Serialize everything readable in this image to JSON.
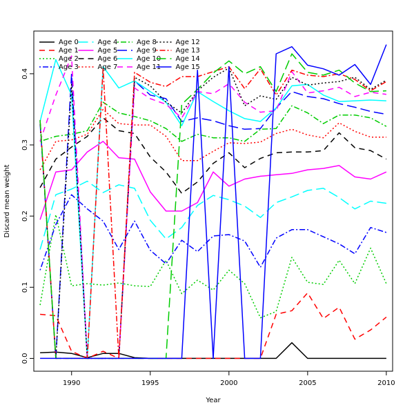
{
  "chart_data": {
    "type": "line",
    "xlabel": "Year",
    "ylabel": "Discard mean weight",
    "xlim": [
      1987.6,
      2010.4
    ],
    "ylim": [
      -0.018,
      0.46
    ],
    "x_ticks": [
      1990,
      1995,
      2000,
      2005,
      2010
    ],
    "y_ticks": [
      0.0,
      0.1,
      0.2,
      0.3,
      0.4
    ],
    "legend_position": "top-left",
    "grid": false,
    "x": [
      1988,
      1989,
      1990,
      1991,
      1992,
      1993,
      1994,
      1995,
      1996,
      1997,
      1998,
      1999,
      2000,
      2001,
      2002,
      2003,
      2004,
      2005,
      2006,
      2007,
      2008,
      2009,
      2010
    ],
    "series": [
      {
        "name": "Age 0",
        "color": "#000000",
        "dash": "solid",
        "values": [
          0.008,
          0.009,
          0.007,
          0.001,
          0.007,
          0.007,
          0.001,
          0.0,
          0.0,
          0.0,
          0.0,
          0.0,
          0.0,
          0.0,
          0.0,
          0.0,
          0.022,
          0.0,
          0.0,
          0.0,
          0.0,
          0.0,
          0.0
        ]
      },
      {
        "name": "Age 1",
        "color": "#ff0000",
        "dash": "dashed",
        "values": [
          0.062,
          0.06,
          0.01,
          0.0,
          0.01,
          0.0,
          0.0,
          0.0,
          0.0,
          0.0,
          0.0,
          0.0,
          0.0,
          0.0,
          0.0,
          0.062,
          0.067,
          0.092,
          0.056,
          0.072,
          0.027,
          0.04,
          0.058
        ]
      },
      {
        "name": "Age 2",
        "color": "#00cc00",
        "dash": "dotted",
        "values": [
          0.075,
          0.202,
          0.102,
          0.105,
          0.103,
          0.106,
          0.102,
          0.101,
          0.138,
          0.091,
          0.11,
          0.096,
          0.124,
          0.105,
          0.057,
          0.066,
          0.142,
          0.107,
          0.104,
          0.138,
          0.105,
          0.155,
          0.105
        ]
      },
      {
        "name": "Age 3",
        "color": "#0000ff",
        "dash": "dashdot",
        "values": [
          0.124,
          0.188,
          0.23,
          0.21,
          0.193,
          0.153,
          0.193,
          0.152,
          0.133,
          0.166,
          0.15,
          0.172,
          0.174,
          0.165,
          0.128,
          0.169,
          0.181,
          0.181,
          0.171,
          0.161,
          0.147,
          0.184,
          0.177
        ]
      },
      {
        "name": "Age 4",
        "color": "#00ffff",
        "dash": "longdash",
        "values": [
          0.153,
          0.23,
          0.238,
          0.249,
          0.233,
          0.244,
          0.239,
          0.194,
          0.168,
          0.184,
          0.215,
          0.229,
          0.223,
          0.214,
          0.198,
          0.219,
          0.227,
          0.236,
          0.239,
          0.226,
          0.21,
          0.221,
          0.218
        ]
      },
      {
        "name": "Age 5",
        "color": "#ff00ff",
        "dash": "solid",
        "values": [
          0.195,
          0.262,
          0.265,
          0.29,
          0.305,
          0.282,
          0.28,
          0.234,
          0.207,
          0.207,
          0.219,
          0.262,
          0.242,
          0.252,
          0.256,
          0.258,
          0.26,
          0.265,
          0.267,
          0.271,
          0.255,
          0.252,
          0.262
        ]
      },
      {
        "name": "Age 6",
        "color": "#000000",
        "dash": "dashed",
        "values": [
          0.24,
          0.28,
          0.297,
          0.312,
          0.338,
          0.32,
          0.316,
          0.283,
          0.262,
          0.232,
          0.248,
          0.274,
          0.289,
          0.268,
          0.281,
          0.289,
          0.29,
          0.29,
          0.292,
          0.317,
          0.296,
          0.292,
          0.28
        ]
      },
      {
        "name": "Age 7",
        "color": "#ff0000",
        "dash": "dotted",
        "values": [
          0.265,
          0.305,
          0.307,
          0.315,
          0.35,
          0.33,
          0.328,
          0.328,
          0.312,
          0.278,
          0.278,
          0.291,
          0.303,
          0.302,
          0.304,
          0.316,
          0.322,
          0.314,
          0.31,
          0.331,
          0.319,
          0.311,
          0.311
        ]
      },
      {
        "name": "Age 8",
        "color": "#00cc00",
        "dash": "dashdot",
        "values": [
          0.305,
          0.312,
          0.315,
          0.32,
          0.36,
          0.345,
          0.34,
          0.334,
          0.323,
          0.305,
          0.315,
          0.31,
          0.31,
          0.305,
          0.322,
          0.323,
          0.355,
          0.345,
          0.33,
          0.342,
          0.342,
          0.338,
          0.326
        ]
      },
      {
        "name": "Age 9",
        "color": "#0000ff",
        "dash": "longdash",
        "values": [
          0.33,
          0.0,
          0.4,
          0.0,
          0.0,
          0.0,
          0.39,
          0.37,
          0.365,
          0.333,
          0.338,
          0.334,
          0.327,
          0.322,
          0.323,
          0.352,
          0.375,
          0.368,
          0.365,
          0.358,
          0.353,
          0.347,
          0.343
        ]
      },
      {
        "name": "Age 10",
        "color": "#00ffff",
        "dash": "solid",
        "values": [
          0.333,
          0.42,
          0.37,
          0.0,
          0.41,
          0.38,
          0.39,
          0.375,
          0.36,
          0.327,
          0.375,
          0.361,
          0.348,
          0.337,
          0.333,
          0.352,
          0.383,
          0.385,
          0.37,
          0.361,
          0.362,
          0.363,
          0.362
        ]
      },
      {
        "name": "Age 11",
        "color": "#ff00ff",
        "dash": "dashed",
        "values": [
          0.305,
          0.37,
          0.425,
          0.0,
          0.0,
          0.0,
          0.38,
          0.365,
          0.357,
          0.338,
          0.375,
          0.372,
          0.386,
          0.36,
          0.346,
          0.348,
          0.403,
          0.373,
          0.376,
          0.381,
          0.368,
          0.374,
          0.371
        ]
      },
      {
        "name": "Age 12",
        "color": "#000000",
        "dash": "dotted",
        "values": [
          0.333,
          0.0,
          0.385,
          0.0,
          0.0,
          0.0,
          0.395,
          0.383,
          0.36,
          0.345,
          0.376,
          0.395,
          0.408,
          0.355,
          0.369,
          0.364,
          0.395,
          0.384,
          0.387,
          0.389,
          0.395,
          0.378,
          0.391
        ]
      },
      {
        "name": "Age 13",
        "color": "#ff0000",
        "dash": "dashdot",
        "values": [
          0.335,
          0.0,
          0.0,
          0.0,
          0.408,
          0.0,
          0.402,
          0.388,
          0.382,
          0.396,
          0.396,
          0.403,
          0.41,
          0.379,
          0.407,
          0.37,
          0.405,
          0.398,
          0.396,
          0.4,
          0.392,
          0.376,
          0.389
        ]
      },
      {
        "name": "Age 14",
        "color": "#00cc00",
        "dash": "longdash",
        "values": [
          0.335,
          0.0,
          0.0,
          0.0,
          0.0,
          0.0,
          0.0,
          0.0,
          0.0,
          0.357,
          0.378,
          0.401,
          0.418,
          0.4,
          0.41,
          0.375,
          0.428,
          0.402,
          0.398,
          0.405,
          0.387,
          0.375,
          0.376
        ]
      },
      {
        "name": "Age 15",
        "color": "#0000ff",
        "dash": "solid",
        "values": [
          0.0,
          0.0,
          0.0,
          0.0,
          0.0,
          0.0,
          0.0,
          0.0,
          0.0,
          0.0,
          0.405,
          0.0,
          0.41,
          0.0,
          0.0,
          0.428,
          0.438,
          0.412,
          0.407,
          0.398,
          0.413,
          0.385,
          0.441
        ]
      }
    ]
  }
}
